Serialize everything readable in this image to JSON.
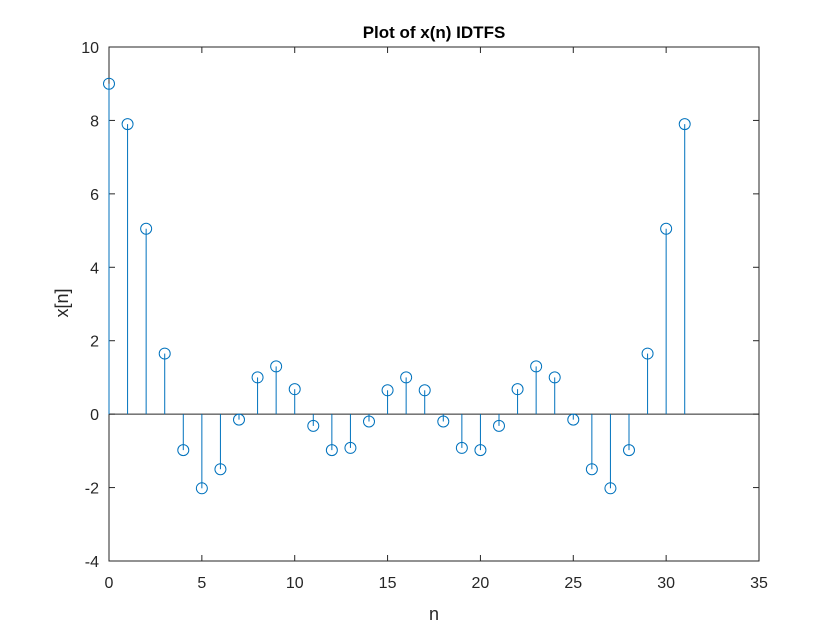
{
  "chart_data": {
    "type": "stem",
    "title": "Plot of x(n) IDTFS",
    "xlabel": "n",
    "ylabel": "x[n]",
    "xlim": [
      0,
      35
    ],
    "ylim": [
      -4,
      10
    ],
    "x_ticks": [
      "0",
      "5",
      "10",
      "15",
      "20",
      "25",
      "30",
      "35"
    ],
    "y_ticks": [
      "-4",
      "-2",
      "0",
      "2",
      "4",
      "6",
      "8",
      "10"
    ],
    "grid": false,
    "box": true,
    "marker": "open-circle",
    "color": "#0072BD",
    "axis_color": "#262626",
    "baseline_color": "#262626",
    "series": [
      {
        "x": [
          0,
          1,
          2,
          3,
          4,
          5,
          6,
          7,
          8,
          9,
          10,
          11,
          12,
          13,
          14,
          15,
          16,
          17,
          18,
          19,
          20,
          21,
          22,
          23,
          24,
          25,
          26,
          27,
          28,
          29,
          30,
          31
        ],
        "values": [
          9,
          7.9,
          5.05,
          1.65,
          -0.98,
          -2.02,
          -1.5,
          -0.15,
          1.0,
          1.3,
          0.68,
          -0.32,
          -0.98,
          -0.92,
          -0.2,
          0.65,
          1.0,
          0.65,
          -0.2,
          -0.92,
          -0.98,
          -0.32,
          0.68,
          1.3,
          1.0,
          -0.15,
          -1.5,
          -2.02,
          -0.98,
          1.65,
          5.05,
          7.9
        ]
      }
    ]
  }
}
